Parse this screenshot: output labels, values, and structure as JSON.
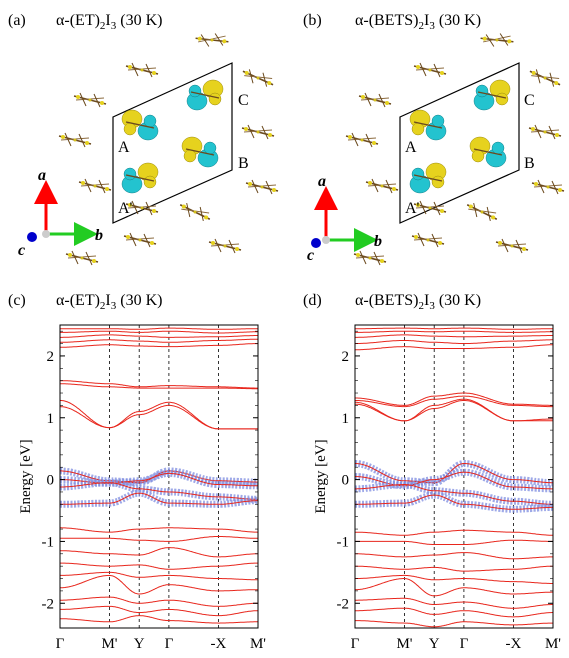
{
  "panels": [
    {
      "letter": "(a)",
      "title_pre": "α-(ET)",
      "title_mid": ")",
      "title_post": " (30 K)",
      "sub1": "2",
      "sub2": "3",
      "title_i": "I"
    },
    {
      "letter": "(b)",
      "title_pre": "α-(BETS)",
      "title_mid": ")",
      "title_post": " (30 K)",
      "sub1": "2",
      "sub2": "3",
      "title_i": "I"
    },
    {
      "letter": "(c)",
      "title_pre": "α-(ET)",
      "title_mid": ")",
      "title_post": " (30 K)",
      "sub1": "2",
      "sub2": "3",
      "title_i": "I"
    },
    {
      "letter": "(d)",
      "title_pre": "α-(BETS)",
      "title_mid": ")",
      "title_post": " (30 K)",
      "sub1": "2",
      "sub2": "3",
      "title_i": "I"
    }
  ],
  "structure": {
    "site_labels": [
      "A",
      "A'",
      "B",
      "C"
    ],
    "axes": [
      "a",
      "b",
      "c"
    ],
    "colors": {
      "orbital_pos": "#e6d21e",
      "orbital_neg": "#23c3cf",
      "molecule": "#6b4a1e",
      "axis_a": "#ff0000",
      "axis_b": "#22cc22",
      "axis_c": "#0000cc"
    }
  },
  "chart_data": [
    {
      "type": "line",
      "title": "α-(ET)2I3 (30 K)",
      "ylabel": "Energy [eV]",
      "ylim": [
        -2.4,
        2.5
      ],
      "yticks": [
        "2",
        "1",
        "0",
        "-1",
        "-2"
      ],
      "kpath": [
        "Γ",
        "M'",
        "Y",
        "Γ",
        "-X",
        "M'"
      ],
      "kpos": [
        0,
        1,
        1.6,
        2.2,
        3.2,
        4.0
      ],
      "colors": {
        "bands": "#e8261c",
        "fatband": "#7e8ce0"
      },
      "series": [
        {
          "values": [
            2.44,
            2.44,
            2.43,
            2.45,
            2.43,
            2.44
          ]
        },
        {
          "values": [
            2.38,
            2.4,
            2.38,
            2.4,
            2.37,
            2.39
          ]
        },
        {
          "values": [
            2.3,
            2.34,
            2.32,
            2.3,
            2.31,
            2.33
          ]
        },
        {
          "values": [
            2.22,
            2.26,
            2.24,
            2.22,
            2.25,
            2.27
          ]
        },
        {
          "values": [
            2.14,
            2.18,
            2.16,
            2.15,
            2.17,
            2.2
          ]
        },
        {
          "values": [
            1.6,
            1.55,
            1.5,
            1.52,
            1.5,
            1.48
          ]
        },
        {
          "values": [
            1.55,
            1.5,
            1.48,
            1.48,
            1.48,
            1.47
          ]
        },
        {
          "values": [
            1.28,
            0.84,
            1.1,
            1.25,
            0.82,
            0.82
          ]
        },
        {
          "values": [
            1.18,
            0.84,
            1.05,
            1.2,
            0.82,
            0.82
          ]
        },
        {
          "values": [
            0.14,
            -0.02,
            -0.05,
            0.14,
            -0.02,
            -0.04
          ],
          "fat": true
        },
        {
          "values": [
            0.0,
            -0.06,
            -0.02,
            0.1,
            -0.08,
            -0.1
          ],
          "fat": true
        },
        {
          "values": [
            -0.12,
            -0.05,
            -0.15,
            -0.2,
            -0.28,
            -0.32
          ],
          "fat": true
        },
        {
          "values": [
            -0.4,
            -0.38,
            -0.22,
            -0.38,
            -0.4,
            -0.34
          ],
          "fat": true
        },
        {
          "values": [
            -0.78,
            -0.85,
            -0.8,
            -0.78,
            -0.8,
            -0.85
          ]
        },
        {
          "values": [
            -0.95,
            -0.95,
            -0.98,
            -1.0,
            -0.92,
            -0.95
          ]
        },
        {
          "values": [
            -1.15,
            -1.2,
            -1.22,
            -1.1,
            -1.25,
            -1.2
          ]
        },
        {
          "values": [
            -1.35,
            -1.4,
            -1.38,
            -1.45,
            -1.4,
            -1.35
          ]
        },
        {
          "values": [
            -1.55,
            -1.5,
            -1.58,
            -1.55,
            -1.6,
            -1.62
          ]
        },
        {
          "values": [
            -1.75,
            -1.55,
            -1.85,
            -1.7,
            -1.8,
            -1.78
          ]
        },
        {
          "values": [
            -1.95,
            -1.9,
            -2.0,
            -1.95,
            -2.05,
            -2.0
          ]
        },
        {
          "values": [
            -2.1,
            -2.05,
            -2.15,
            -2.1,
            -2.2,
            -2.12
          ]
        },
        {
          "values": [
            -2.25,
            -2.3,
            -2.2,
            -2.28,
            -2.32,
            -2.3
          ]
        }
      ]
    },
    {
      "type": "line",
      "title": "α-(BETS)2I3 (30 K)",
      "ylabel": "Energy [eV]",
      "ylim": [
        -2.4,
        2.5
      ],
      "yticks": [
        "2",
        "1",
        "0",
        "-1",
        "-2"
      ],
      "kpath": [
        "Γ",
        "M'",
        "Y",
        "Γ",
        "-X",
        "M'"
      ],
      "kpos": [
        0,
        1,
        1.6,
        2.2,
        3.2,
        4.0
      ],
      "colors": {
        "bands": "#e8261c",
        "fatband": "#7e8ce0"
      },
      "series": [
        {
          "values": [
            2.44,
            2.45,
            2.44,
            2.45,
            2.43,
            2.44
          ]
        },
        {
          "values": [
            2.38,
            2.4,
            2.39,
            2.4,
            2.38,
            2.39
          ]
        },
        {
          "values": [
            2.3,
            2.34,
            2.32,
            2.31,
            2.32,
            2.33
          ]
        },
        {
          "values": [
            2.2,
            2.25,
            2.22,
            2.2,
            2.24,
            2.26
          ]
        },
        {
          "values": [
            2.1,
            2.15,
            2.12,
            2.12,
            2.14,
            2.18
          ]
        },
        {
          "values": [
            1.32,
            1.2,
            1.35,
            1.4,
            1.22,
            1.2
          ]
        },
        {
          "values": [
            1.28,
            1.18,
            1.3,
            1.35,
            1.2,
            1.18
          ]
        },
        {
          "values": [
            1.25,
            0.95,
            1.2,
            1.3,
            0.95,
            0.98
          ]
        },
        {
          "values": [
            1.22,
            0.95,
            1.15,
            1.28,
            0.95,
            0.95
          ]
        },
        {
          "values": [
            0.26,
            -0.02,
            -0.05,
            0.26,
            0.0,
            -0.05
          ],
          "fat": true
        },
        {
          "values": [
            0.05,
            -0.1,
            0.0,
            0.12,
            -0.12,
            -0.15
          ],
          "fat": true
        },
        {
          "values": [
            -0.15,
            -0.08,
            -0.18,
            -0.22,
            -0.35,
            -0.4
          ],
          "fat": true
        },
        {
          "values": [
            -0.4,
            -0.38,
            -0.25,
            -0.4,
            -0.48,
            -0.45
          ],
          "fat": true
        },
        {
          "values": [
            -0.85,
            -0.9,
            -0.85,
            -0.82,
            -0.85,
            -0.9
          ]
        },
        {
          "values": [
            -1.0,
            -1.0,
            -1.05,
            -1.05,
            -0.98,
            -1.0
          ]
        },
        {
          "values": [
            -1.2,
            -1.25,
            -1.22,
            -1.18,
            -1.28,
            -1.25
          ]
        },
        {
          "values": [
            -1.4,
            -1.45,
            -1.42,
            -1.48,
            -1.45,
            -1.4
          ]
        },
        {
          "values": [
            -1.6,
            -1.55,
            -1.62,
            -1.6,
            -1.65,
            -1.68
          ]
        },
        {
          "values": [
            -1.78,
            -1.6,
            -1.88,
            -1.75,
            -1.85,
            -1.82
          ]
        },
        {
          "values": [
            -1.95,
            -1.92,
            -2.02,
            -1.98,
            -2.08,
            -2.02
          ]
        },
        {
          "values": [
            -2.12,
            -2.08,
            -2.18,
            -2.12,
            -2.22,
            -2.15
          ]
        },
        {
          "values": [
            -2.28,
            -2.32,
            -2.38,
            -2.3,
            -2.35,
            -2.32
          ]
        }
      ]
    }
  ]
}
